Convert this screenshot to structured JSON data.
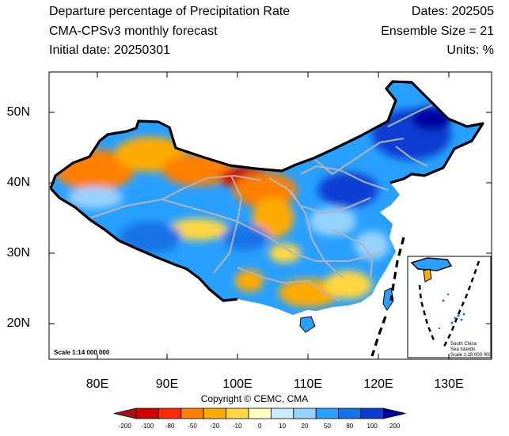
{
  "header": {
    "title": "Departure percentage of Precipitation Rate",
    "subtitle": "CMA-CPSv3 monthly forecast",
    "initial_date": "Initial date: 20250301",
    "dates": "Dates: 202505",
    "ensemble": "Ensemble Size = 21",
    "units": "Units: %"
  },
  "axes": {
    "lon_labels": [
      "80E",
      "90E",
      "100E",
      "110E",
      "120E",
      "130E"
    ],
    "lat_labels": [
      "50N",
      "40N",
      "30N",
      "20N"
    ]
  },
  "scale_main": "Scale 1:14 000 000",
  "inset": {
    "lines": [
      "South China",
      "Sea Islands",
      "Scale 1:28 000 000"
    ]
  },
  "copyright": "Copyright © CEMC, CMA",
  "colorbar": {
    "labels": [
      "-200",
      "-100",
      "-80",
      "-50",
      "-20",
      "-10",
      "0",
      "10",
      "20",
      "50",
      "80",
      "100",
      "200"
    ],
    "colors": [
      "#a50f15",
      "#d40000",
      "#ff2a00",
      "#ff7f00",
      "#ffaa00",
      "#ffd740",
      "#ffffc0",
      "#c8ecff",
      "#96d2ff",
      "#28a0ff",
      "#1473e6",
      "#0a3cd2",
      "#0000a0"
    ]
  },
  "palette": {
    "dry_strong": "#d40000",
    "dry": "#ff7f00",
    "dry_light": "#ffaa00",
    "neutral": "#ffffc0",
    "wet_light": "#96d2ff",
    "wet": "#28a0ff",
    "wet_strong": "#0a3cd2",
    "border": "#000000",
    "province": "#b4b4b4"
  }
}
